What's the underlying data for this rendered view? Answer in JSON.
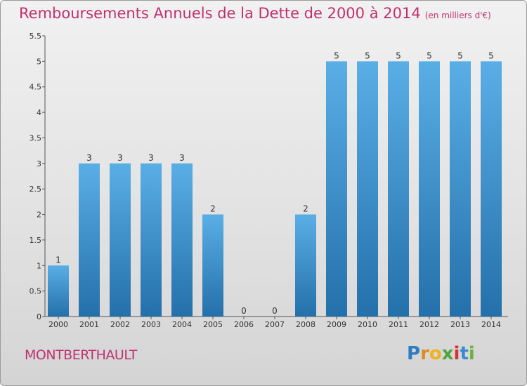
{
  "title": "Remboursements Annuels de la Dette de 2000 à 2014",
  "unit": "(en milliers d'€)",
  "town": "MONTBERTHAULT",
  "logo": "Proxiti",
  "chart_data": {
    "type": "bar",
    "categories": [
      "2000",
      "2001",
      "2002",
      "2003",
      "2004",
      "2005",
      "2006",
      "2007",
      "2008",
      "2009",
      "2010",
      "2011",
      "2012",
      "2013",
      "2014"
    ],
    "values": [
      1,
      3,
      3,
      3,
      3,
      2,
      0,
      0,
      2,
      5,
      5,
      5,
      5,
      5,
      5
    ],
    "ylim": [
      0,
      5.5
    ],
    "yticks": [
      "0",
      "0.5",
      "1",
      "1.5",
      "2",
      "2.5",
      "3",
      "3.5",
      "4",
      "4.5",
      "5",
      "5.5"
    ],
    "grid": false,
    "colors": {
      "bar_top": "#5aaee6",
      "bar_bottom": "#2470aa",
      "title": "#c0306f"
    }
  }
}
